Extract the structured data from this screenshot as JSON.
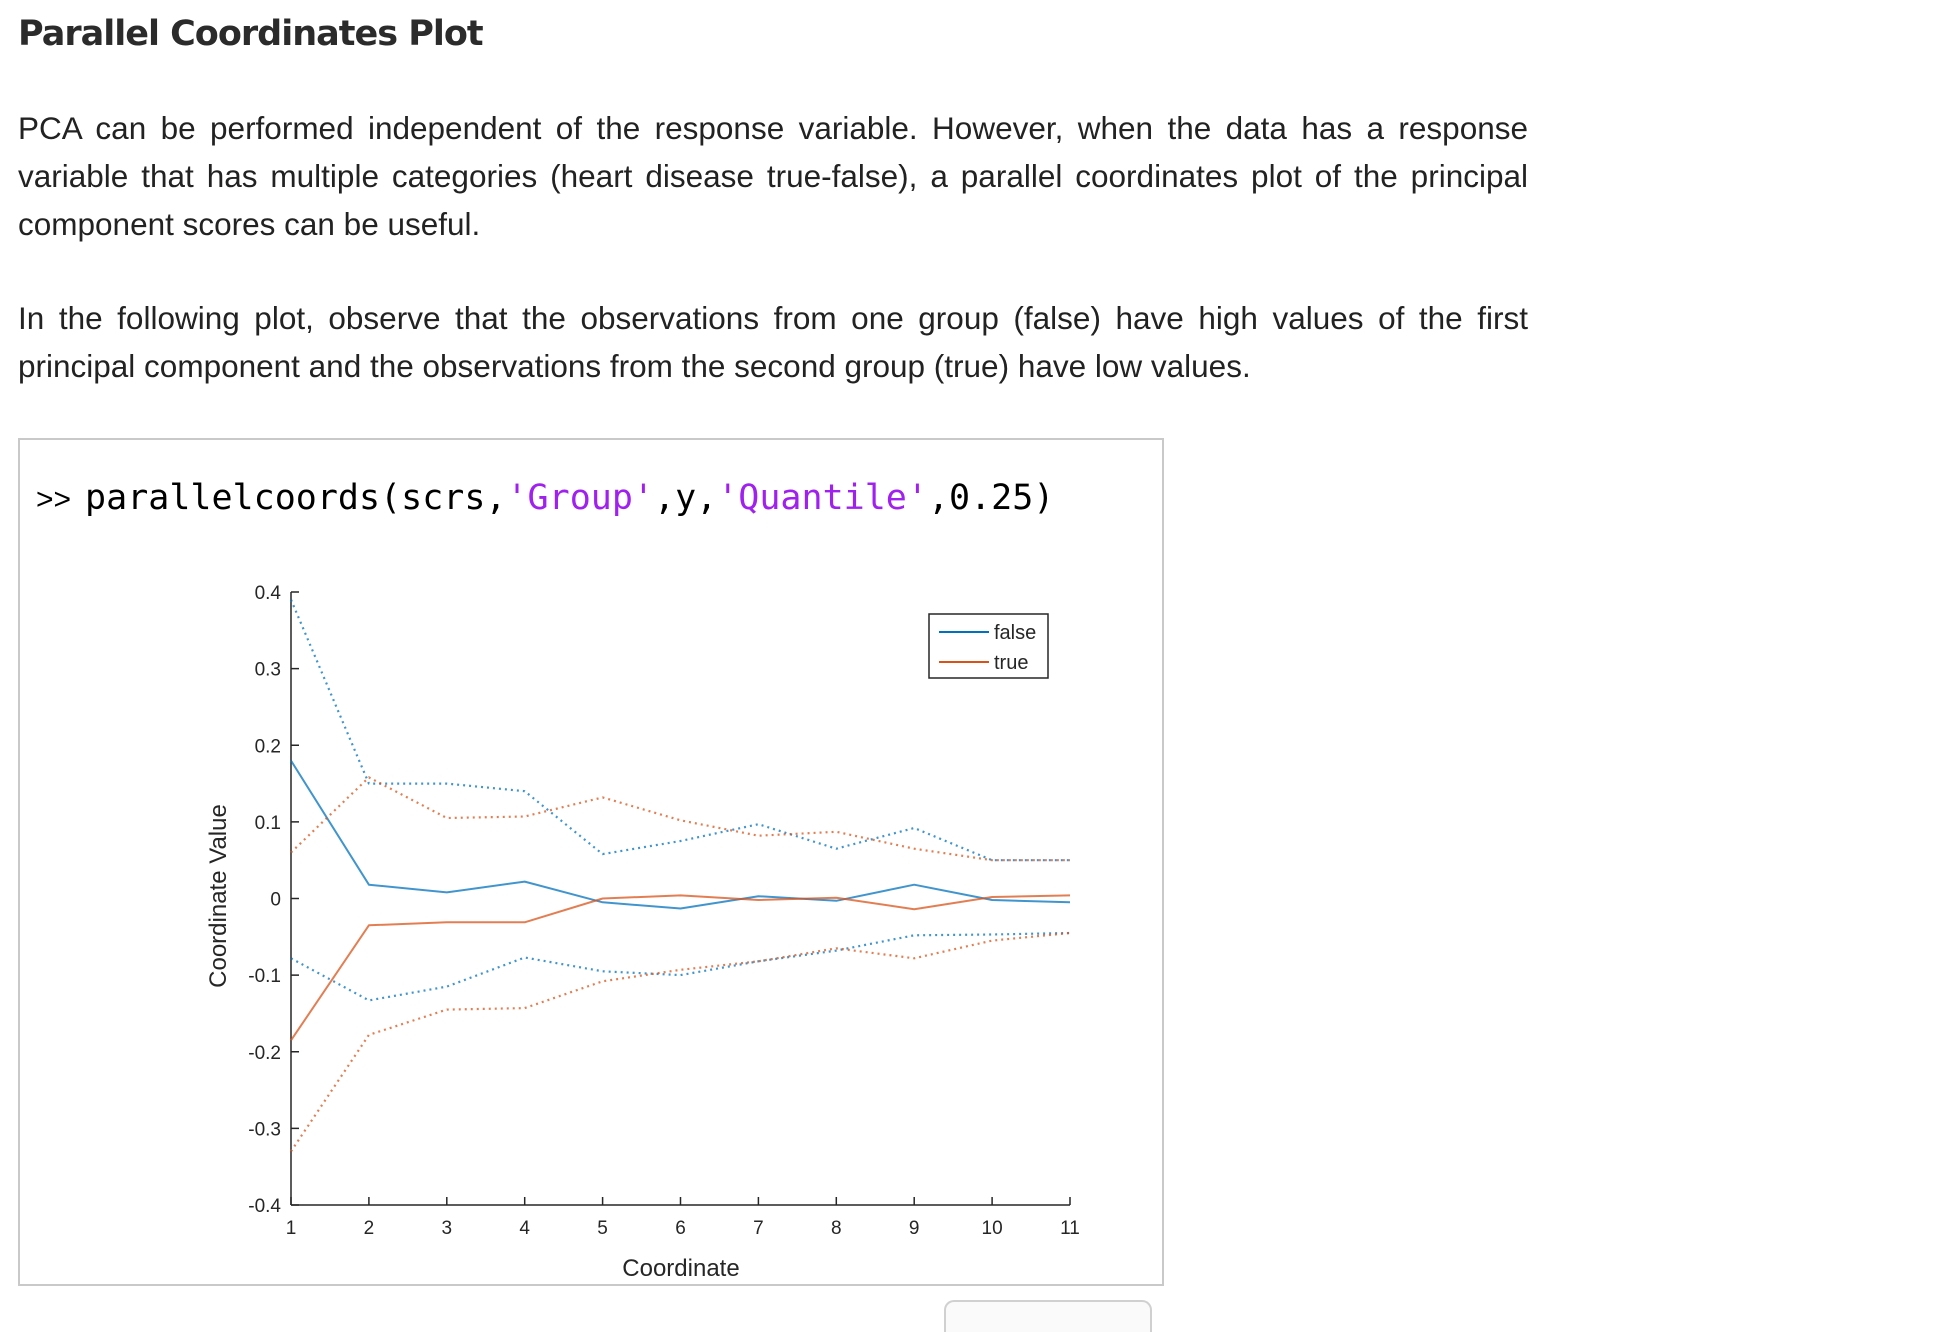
{
  "heading": "Parallel Coordinates Plot",
  "paragraphs": [
    "PCA can be performed independent of the response variable. However, when the data has a response variable that has multiple categories (heart disease true-false), a parallel coordinates plot of the principal component scores can be useful.",
    "In the following plot, observe that the observations from one group (false) have high values of the first principal component and the observations from the second group (true) have low values."
  ],
  "command": {
    "prompt": ">>",
    "pre": "parallelcoords(scrs,",
    "str1": "'Group'",
    "mid": ",y,",
    "str2": "'Quantile'",
    "post": ",0.25)"
  },
  "colors": {
    "false": "#0072bd",
    "true": "#d95319"
  },
  "chart_data": {
    "type": "line",
    "xlabel": "Coordinate",
    "ylabel": "Coordinate Value",
    "xlim": [
      1,
      11
    ],
    "ylim": [
      -0.4,
      0.4
    ],
    "x_ticks": [
      1,
      2,
      3,
      4,
      5,
      6,
      7,
      8,
      9,
      10,
      11
    ],
    "y_ticks": [
      0.4,
      0.3,
      0.2,
      0.1,
      0,
      -0.1,
      -0.2,
      -0.3,
      -0.4
    ],
    "legend_position": "top-right",
    "grid": false,
    "x": [
      1,
      2,
      3,
      4,
      5,
      6,
      7,
      8,
      9,
      10,
      11
    ],
    "series": [
      {
        "name": "false",
        "group": "false",
        "style": "solid",
        "values": [
          0.18,
          0.018,
          0.008,
          0.022,
          -0.005,
          -0.013,
          0.003,
          -0.003,
          0.018,
          -0.002,
          -0.005
        ]
      },
      {
        "name": "",
        "group": "false",
        "style": "dotted",
        "values": [
          0.39,
          0.15,
          0.15,
          0.14,
          0.058,
          0.075,
          0.097,
          0.065,
          0.092,
          0.05,
          0.05
        ]
      },
      {
        "name": "",
        "group": "false",
        "style": "dotted",
        "values": [
          -0.078,
          -0.133,
          -0.115,
          -0.077,
          -0.095,
          -0.1,
          -0.082,
          -0.068,
          -0.048,
          -0.047,
          -0.045
        ]
      },
      {
        "name": "true",
        "group": "true",
        "style": "solid",
        "values": [
          -0.185,
          -0.035,
          -0.031,
          -0.031,
          0.0,
          0.004,
          -0.002,
          0.001,
          -0.014,
          0.002,
          0.004
        ]
      },
      {
        "name": "",
        "group": "true",
        "style": "dotted",
        "values": [
          0.06,
          0.158,
          0.105,
          0.107,
          0.132,
          0.102,
          0.082,
          0.087,
          0.065,
          0.05,
          0.05
        ]
      },
      {
        "name": "",
        "group": "true",
        "style": "dotted",
        "values": [
          -0.33,
          -0.178,
          -0.145,
          -0.143,
          -0.108,
          -0.093,
          -0.082,
          -0.065,
          -0.078,
          -0.055,
          -0.045
        ]
      }
    ]
  }
}
